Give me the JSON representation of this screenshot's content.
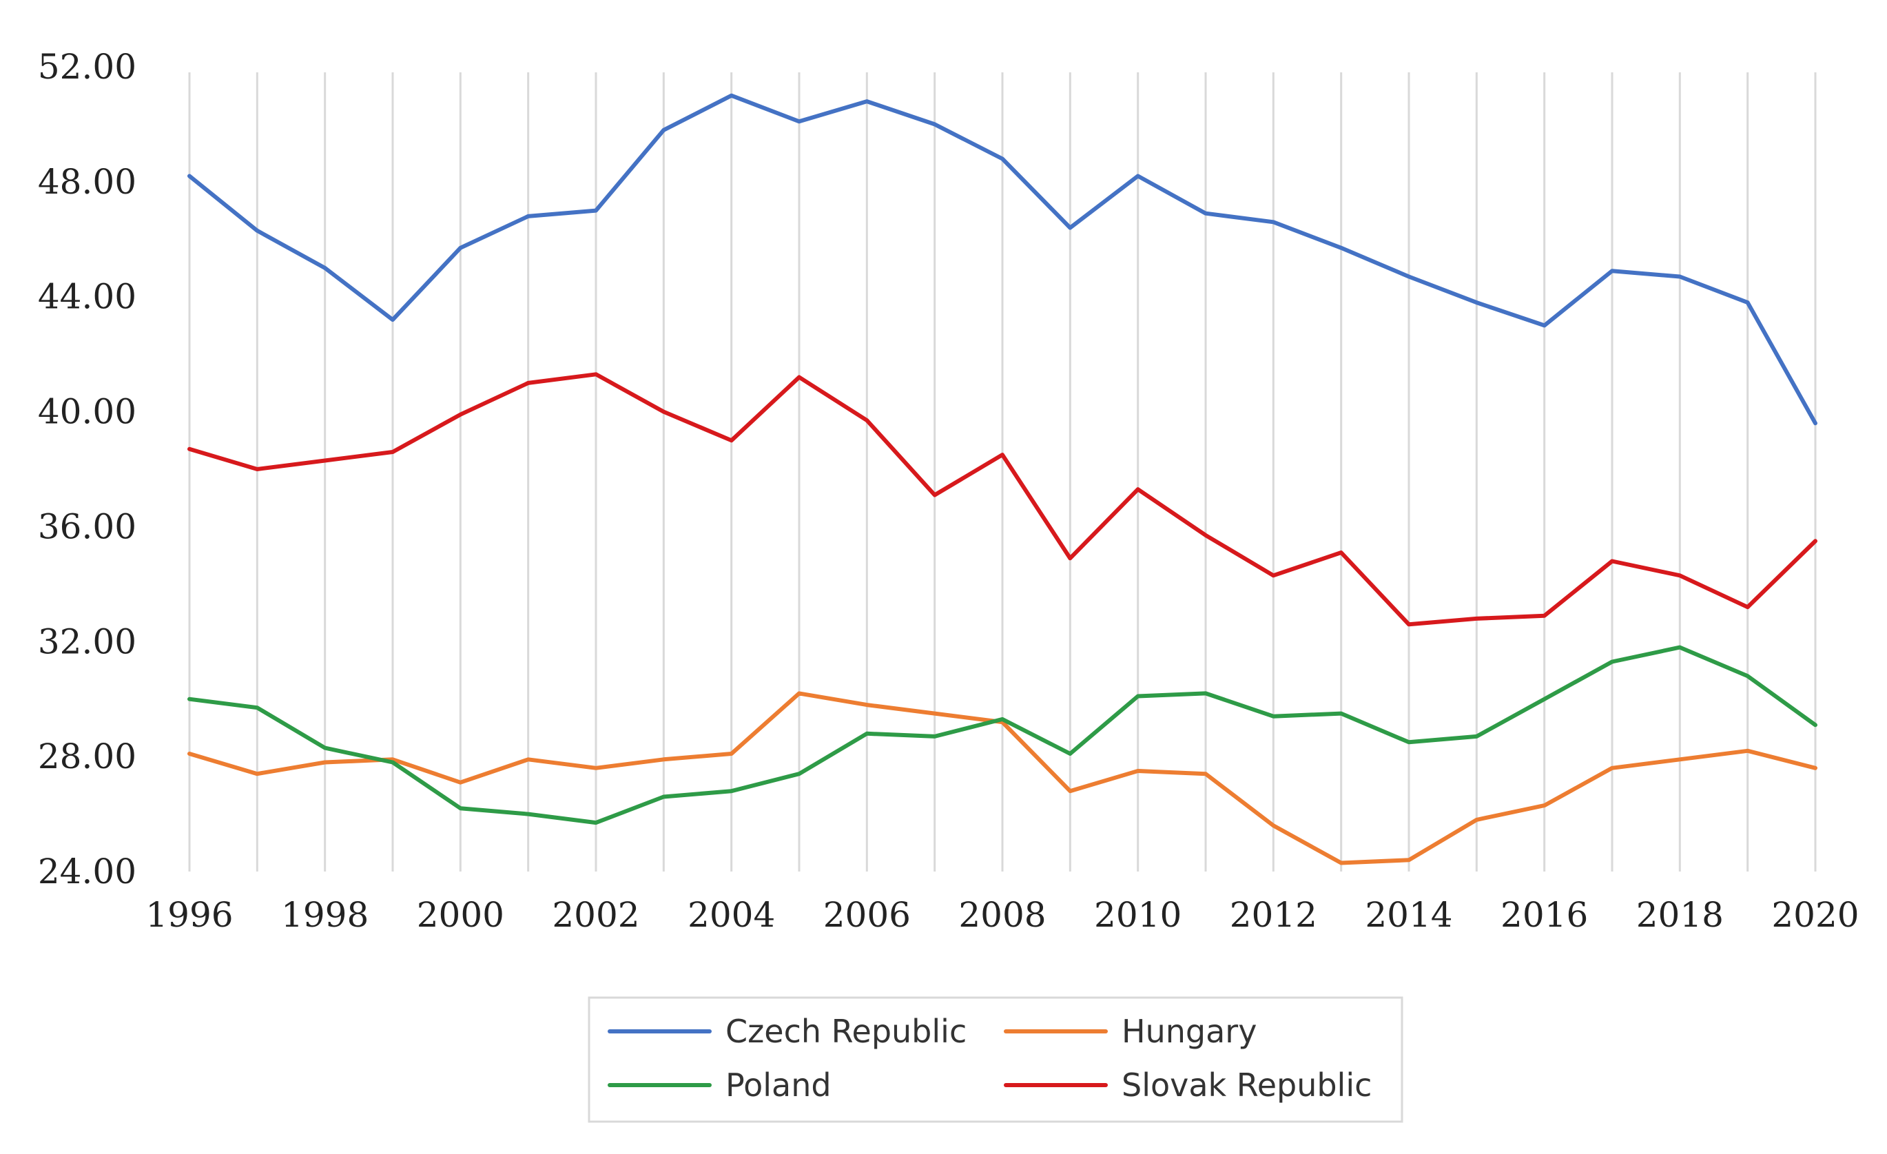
{
  "chart_data": {
    "type": "line",
    "title": "",
    "xlabel": "",
    "ylabel": "",
    "x": [
      1996,
      1997,
      1998,
      1999,
      2000,
      2001,
      2002,
      2003,
      2004,
      2005,
      2006,
      2007,
      2008,
      2009,
      2010,
      2011,
      2012,
      2013,
      2014,
      2015,
      2016,
      2017,
      2018,
      2019,
      2020
    ],
    "x_tick_labels": [
      "1996",
      "1998",
      "2000",
      "2002",
      "2004",
      "2006",
      "2008",
      "2010",
      "2012",
      "2014",
      "2016",
      "2018",
      "2020"
    ],
    "y_tick_labels": [
      "24.00",
      "28.00",
      "32.00",
      "36.00",
      "40.00",
      "44.00",
      "48.00",
      "52.00"
    ],
    "ylim": [
      24,
      52
    ],
    "grid": "vertical",
    "legend_position": "bottom",
    "series": [
      {
        "name": "Czech Republic",
        "color": "#4472C4",
        "values": [
          48.2,
          46.3,
          45.0,
          43.2,
          45.7,
          46.8,
          47.0,
          49.8,
          51.0,
          50.1,
          50.8,
          50.0,
          48.8,
          46.4,
          48.2,
          46.9,
          46.6,
          45.7,
          44.7,
          43.8,
          43.0,
          44.9,
          44.7,
          43.8,
          39.6
        ]
      },
      {
        "name": "Hungary",
        "color": "#ED7D31",
        "values": [
          28.1,
          27.4,
          27.8,
          27.9,
          27.1,
          27.9,
          27.6,
          27.9,
          28.1,
          30.2,
          29.8,
          29.5,
          29.2,
          26.8,
          27.5,
          27.4,
          25.6,
          24.3,
          24.4,
          25.8,
          26.3,
          27.6,
          27.9,
          28.2,
          27.6
        ]
      },
      {
        "name": "Poland",
        "color": "#2E9B47",
        "values": [
          30.0,
          29.7,
          28.3,
          27.8,
          26.2,
          26.0,
          25.7,
          26.6,
          26.8,
          27.4,
          28.8,
          28.7,
          29.3,
          28.1,
          30.1,
          30.2,
          29.4,
          29.5,
          28.5,
          28.7,
          30.0,
          31.3,
          31.8,
          30.8,
          29.1
        ]
      },
      {
        "name": "Slovak Republic",
        "color": "#D7191C",
        "values": [
          38.7,
          38.0,
          38.3,
          38.6,
          39.9,
          41.0,
          41.3,
          40.0,
          39.0,
          41.2,
          39.7,
          37.1,
          38.5,
          34.9,
          37.3,
          35.7,
          34.3,
          35.1,
          32.6,
          32.8,
          32.9,
          34.8,
          34.3,
          33.2,
          35.5
        ]
      }
    ]
  }
}
